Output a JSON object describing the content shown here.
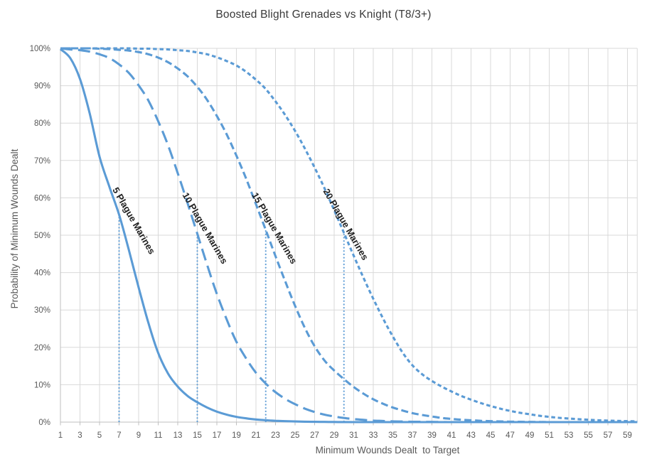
{
  "chart_data": {
    "type": "line",
    "title": "Boosted Blight Grenades vs Knight (T8/3+)",
    "xlabel": "Minimum Wounds Dealt  to Target",
    "ylabel": "Probability of Minimum Wounds Dealt",
    "x_axis": {
      "range": [
        1,
        60
      ],
      "tick_labels": [
        "1",
        "3",
        "5",
        "7",
        "9",
        "11",
        "13",
        "15",
        "17",
        "19",
        "21",
        "23",
        "25",
        "27",
        "29",
        "31",
        "33",
        "35",
        "37",
        "39",
        "41",
        "43",
        "45",
        "47",
        "49",
        "51",
        "53",
        "55",
        "57",
        "59"
      ],
      "gridline_interval": 2
    },
    "y_axis": {
      "range_pct": [
        0,
        100
      ],
      "tick_labels": [
        "0%",
        "10%",
        "20%",
        "30%",
        "40%",
        "50%",
        "60%",
        "70%",
        "80%",
        "90%",
        "100%"
      ],
      "gridline_interval_pct": 10
    },
    "grid": true,
    "legend": "none (labels drawn along curves)",
    "colors": {
      "series": "#5B9BD5",
      "gridline": "#D9D9D9",
      "axis_line": "#BFBFBF",
      "tick_text": "#595959",
      "title_text": "#3a3a3a",
      "series_label_text": "#1f1f1f"
    },
    "series": [
      {
        "name": "5 Plague Marines",
        "line_style": "solid",
        "median_x": 7,
        "median_top_pct": 55.5,
        "label_anchor": {
          "x": 6.3,
          "y_pct": 62.2,
          "angle_deg": 60
        },
        "x_start": 1,
        "values_pct": [
          99.8,
          97.4,
          91.8,
          82.5,
          71,
          63,
          55.5,
          46,
          36,
          26.5,
          18.5,
          13,
          9.5,
          7,
          5.3,
          3.9,
          2.8,
          2,
          1.4,
          1,
          0.7,
          0.5,
          0.35,
          0.25,
          0.17,
          0.12,
          0.08,
          0.05,
          0.03,
          0.02,
          0,
          0,
          0,
          0,
          0,
          0,
          0,
          0,
          0,
          0,
          0,
          0,
          0,
          0,
          0,
          0,
          0,
          0,
          0,
          0,
          0,
          0,
          0,
          0,
          0,
          0,
          0,
          0,
          0,
          0
        ]
      },
      {
        "name": "10 Plague Marines",
        "line_style": "long-dash",
        "median_x": 15,
        "median_top_pct": 50.4,
        "label_anchor": {
          "x": 13.45,
          "y_pct": 60.8,
          "angle_deg": 60
        },
        "x_start": 1,
        "values_pct": [
          100,
          99.7,
          99.5,
          99.1,
          98.4,
          97.4,
          95.7,
          93.4,
          90.1,
          86,
          80.5,
          74.1,
          66.6,
          58.6,
          50.4,
          42.1,
          34.3,
          27.5,
          21.5,
          17,
          13.2,
          10.3,
          8,
          6.2,
          4.8,
          3.6,
          2.7,
          2,
          1.5,
          1.1,
          0.8,
          0.6,
          0.4,
          0.3,
          0.2,
          0.15,
          0.1,
          0.07,
          0.05,
          0.03,
          0,
          0,
          0,
          0,
          0,
          0,
          0,
          0,
          0,
          0,
          0,
          0,
          0,
          0,
          0,
          0,
          0,
          0,
          0,
          0
        ]
      },
      {
        "name": "15 Plague Marines",
        "line_style": "medium-dash",
        "median_x": 22,
        "median_top_pct": 51.4,
        "label_anchor": {
          "x": 20.55,
          "y_pct": 60.8,
          "angle_deg": 60
        },
        "x_start": 1,
        "values_pct": [
          100,
          100,
          100,
          100,
          99.9,
          99.8,
          99.6,
          99.4,
          99,
          98.4,
          97.5,
          96.3,
          94.6,
          92.5,
          89.7,
          86.2,
          81.9,
          77,
          71.3,
          65.1,
          58.3,
          51.4,
          44.4,
          37.6,
          31.1,
          25.2,
          20.3,
          16.5,
          13.8,
          11.5,
          9.4,
          7.6,
          6.1,
          4.9,
          3.9,
          3.1,
          2.4,
          1.9,
          1.5,
          1.1,
          0.85,
          0.65,
          0.5,
          0.35,
          0.25,
          0.18,
          0.12,
          0.08,
          0.05,
          0.03,
          0,
          0,
          0,
          0,
          0,
          0,
          0,
          0,
          0,
          0
        ]
      },
      {
        "name": "20 Plague Marines",
        "line_style": "short-dash",
        "median_x": 30,
        "median_top_pct": 50.6,
        "label_anchor": {
          "x": 27.85,
          "y_pct": 61.8,
          "angle_deg": 60
        },
        "x_start": 1,
        "values_pct": [
          100,
          100,
          100,
          100,
          100,
          100,
          100,
          100,
          99.9,
          99.9,
          99.8,
          99.7,
          99.5,
          99.3,
          98.9,
          98.4,
          97.6,
          96.6,
          95.4,
          93.7,
          91.6,
          89.1,
          85.8,
          82.1,
          77.9,
          73.2,
          68.1,
          62.6,
          56.7,
          50.6,
          44.5,
          38.6,
          33,
          27.7,
          22.9,
          18.6,
          15.2,
          12.8,
          11,
          9.5,
          8.2,
          7,
          6,
          5.1,
          4.3,
          3.6,
          3,
          2.5,
          2.1,
          1.7,
          1.4,
          1.15,
          0.95,
          0.78,
          0.63,
          0.5,
          0.4,
          0.32,
          0.25,
          0.2
        ]
      }
    ],
    "median_marker_style": "dotted vertical line from 0% up to curve at median"
  }
}
